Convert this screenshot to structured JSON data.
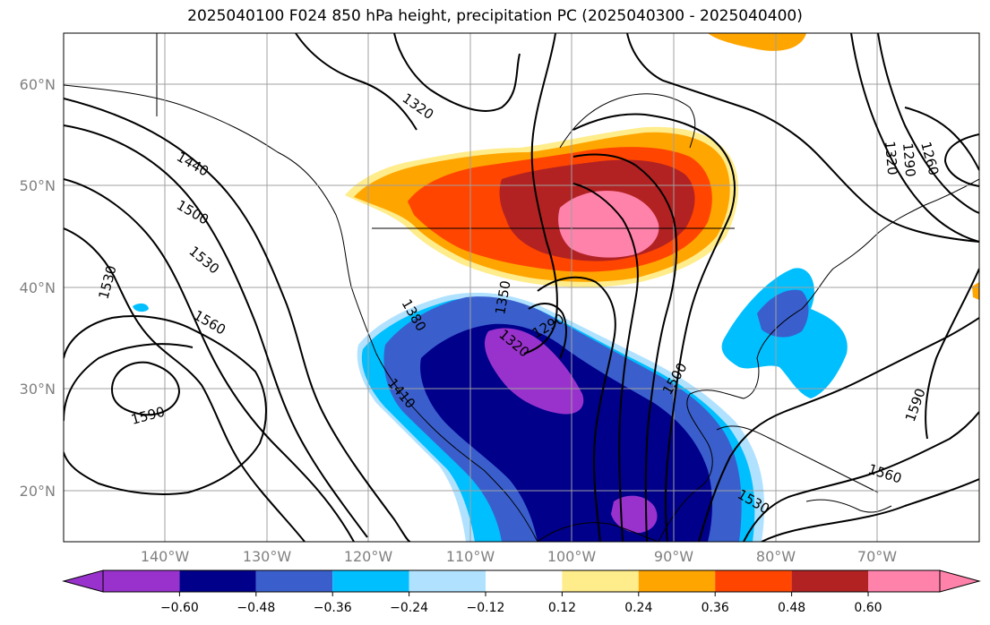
{
  "title": "2025040100 F024 850 hPa height, precipitation PC (2025040300 - 2025040400)",
  "map": {
    "lat_labels": [
      "60°N",
      "50°N",
      "40°N",
      "30°N",
      "20°N"
    ],
    "lon_labels": [
      "140°W",
      "130°W",
      "120°W",
      "110°W",
      "100°W",
      "90°W",
      "80°W",
      "70°W"
    ],
    "contour_labels": [
      "1320",
      "1440",
      "1500",
      "1530",
      "1530",
      "1560",
      "1590",
      "1380",
      "1350",
      "1320",
      "1290",
      "1410",
      "1500",
      "1530",
      "1560",
      "1590",
      "1320",
      "1290",
      "1260"
    ]
  },
  "colorbar": {
    "ticks": [
      "−0.60",
      "−0.48",
      "−0.36",
      "−0.24",
      "−0.12",
      "0.12",
      "0.24",
      "0.36",
      "0.48",
      "0.60"
    ],
    "colors": [
      "#9932cc",
      "#00008b",
      "#3a5fcd",
      "#00bfff",
      "#b0e2ff",
      "#ffffff",
      "#ffec8b",
      "#ffa500",
      "#ff4500",
      "#b22222",
      "#ff82ab",
      "#ff82ab"
    ]
  },
  "chart_data": {
    "type": "heatmap",
    "title": "2025040100 F024 850 hPa height, precipitation PC (2025040300 - 2025040400)",
    "xlabel": "",
    "ylabel": "",
    "lon_range": [
      -150,
      -60
    ],
    "lat_range": [
      15,
      65
    ],
    "levels": [
      -0.6,
      -0.48,
      -0.36,
      -0.24,
      -0.12,
      0.12,
      0.24,
      0.36,
      0.48,
      0.6
    ],
    "contour_levels_gpm": [
      1260,
      1290,
      1320,
      1350,
      1380,
      1410,
      1440,
      1500,
      1530,
      1560,
      1590
    ],
    "grid": true
  }
}
